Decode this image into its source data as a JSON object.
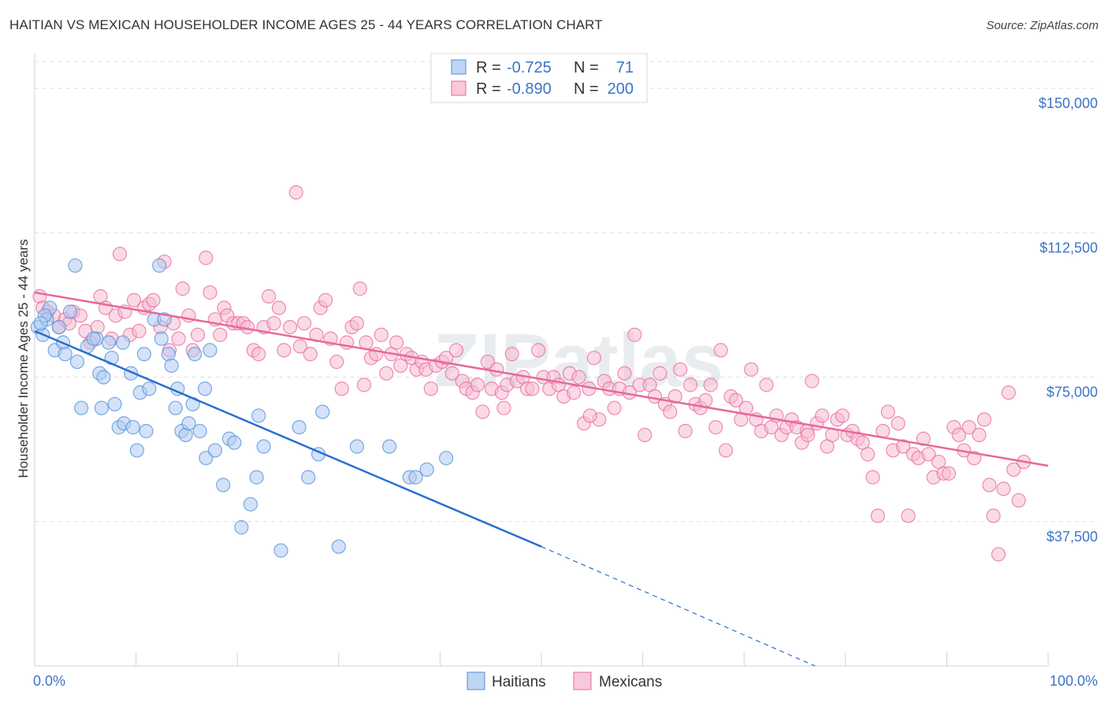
{
  "title": "HAITIAN VS MEXICAN HOUSEHOLDER INCOME AGES 25 - 44 YEARS CORRELATION CHART",
  "source": "Source: ZipAtlas.com",
  "watermark": "ZIPatlas",
  "colors": {
    "haitians": "#4f8fdc",
    "haitians_fill": "#aecbf0",
    "mexicans": "#e8689a",
    "mexicans_fill": "#f6bcd2",
    "axis_text": "#3b74c9",
    "grid": "#d9dde3"
  },
  "legend": {
    "rows": [
      {
        "series": "Haitians",
        "r_label": "R =",
        "r_value": "-0.725",
        "n_label": "N =",
        "n_value": "71"
      },
      {
        "series": "Mexicans",
        "r_label": "R =",
        "r_value": "-0.890",
        "n_label": "N =",
        "n_value": "200"
      }
    ]
  },
  "chart_data": {
    "type": "scatter",
    "title": "HAITIAN VS MEXICAN HOUSEHOLDER INCOME AGES 25 - 44 YEARS CORRELATION CHART",
    "xlabel": "",
    "ylabel": "Householder Income Ages 25 - 44 years",
    "xlim": [
      0,
      100
    ],
    "ylim": [
      0,
      157000
    ],
    "x_tick_labels": [
      "0.0%",
      "100.0%"
    ],
    "y_ticks": [
      37500,
      75000,
      112500,
      150000
    ],
    "y_tick_labels": [
      "$37,500",
      "$75,000",
      "$112,500",
      "$150,000"
    ],
    "grid": true,
    "legend_position": "top-center",
    "series": [
      {
        "name": "Haitians",
        "r": -0.725,
        "n": 71,
        "trend": {
          "x0": 0,
          "y0": 87000,
          "x1": 50,
          "y1": 31000,
          "dashed_to_x": 77,
          "dashed_to_y": 0
        },
        "points": [
          [
            0.3,
            88000
          ],
          [
            0.8,
            86000
          ],
          [
            1.5,
            93000
          ],
          [
            2.0,
            82000
          ],
          [
            2.8,
            84000
          ],
          [
            3.0,
            81000
          ],
          [
            3.5,
            92000
          ],
          [
            4.2,
            79000
          ],
          [
            4.6,
            67000
          ],
          [
            5.2,
            83000
          ],
          [
            6.1,
            85000
          ],
          [
            6.4,
            76000
          ],
          [
            6.6,
            67000
          ],
          [
            6.8,
            75000
          ],
          [
            7.6,
            80000
          ],
          [
            7.3,
            84000
          ],
          [
            7.9,
            68000
          ],
          [
            8.3,
            62000
          ],
          [
            8.7,
            84000
          ],
          [
            8.8,
            63000
          ],
          [
            9.5,
            76000
          ],
          [
            9.7,
            62000
          ],
          [
            10.1,
            56000
          ],
          [
            10.4,
            71000
          ],
          [
            10.8,
            81000
          ],
          [
            11.0,
            61000
          ],
          [
            11.3,
            72000
          ],
          [
            11.8,
            90000
          ],
          [
            12.3,
            104000
          ],
          [
            12.5,
            85000
          ],
          [
            12.8,
            90000
          ],
          [
            13.2,
            81000
          ],
          [
            13.5,
            78000
          ],
          [
            13.9,
            67000
          ],
          [
            14.1,
            72000
          ],
          [
            14.5,
            61000
          ],
          [
            14.9,
            60000
          ],
          [
            15.2,
            63000
          ],
          [
            15.6,
            68000
          ],
          [
            15.8,
            81000
          ],
          [
            16.3,
            61000
          ],
          [
            16.8,
            72000
          ],
          [
            16.9,
            54000
          ],
          [
            17.3,
            82000
          ],
          [
            17.8,
            56000
          ],
          [
            18.6,
            47000
          ],
          [
            19.2,
            59000
          ],
          [
            19.7,
            58000
          ],
          [
            20.4,
            36000
          ],
          [
            21.3,
            42000
          ],
          [
            21.9,
            49000
          ],
          [
            22.1,
            65000
          ],
          [
            22.6,
            57000
          ],
          [
            24.3,
            30000
          ],
          [
            26.1,
            62000
          ],
          [
            27.0,
            49000
          ],
          [
            28.0,
            55000
          ],
          [
            28.4,
            66000
          ],
          [
            30.0,
            31000
          ],
          [
            31.8,
            57000
          ],
          [
            35.0,
            57000
          ],
          [
            37.0,
            49000
          ],
          [
            37.6,
            49000
          ],
          [
            38.7,
            51000
          ],
          [
            40.6,
            54000
          ],
          [
            1.2,
            90000
          ],
          [
            4.0,
            104000
          ],
          [
            5.8,
            85000
          ],
          [
            2.4,
            88000
          ],
          [
            1.0,
            91000
          ],
          [
            0.6,
            89000
          ]
        ]
      },
      {
        "name": "Mexicans",
        "r": -0.89,
        "n": 200,
        "trend": {
          "x0": 0,
          "y0": 97000,
          "x1": 100,
          "y1": 52000
        },
        "points": [
          [
            0.5,
            96000
          ],
          [
            0.8,
            93000
          ],
          [
            1.3,
            92000
          ],
          [
            1.9,
            91000
          ],
          [
            2.4,
            88000
          ],
          [
            3.0,
            90000
          ],
          [
            3.4,
            89000
          ],
          [
            3.8,
            92000
          ],
          [
            4.5,
            91000
          ],
          [
            5.0,
            87000
          ],
          [
            5.5,
            84000
          ],
          [
            6.2,
            88000
          ],
          [
            6.5,
            96000
          ],
          [
            7.0,
            93000
          ],
          [
            7.6,
            85000
          ],
          [
            8.0,
            91000
          ],
          [
            8.4,
            107000
          ],
          [
            8.9,
            92000
          ],
          [
            9.4,
            86000
          ],
          [
            9.8,
            95000
          ],
          [
            10.3,
            87000
          ],
          [
            10.8,
            93000
          ],
          [
            11.3,
            94000
          ],
          [
            11.7,
            95000
          ],
          [
            12.4,
            88000
          ],
          [
            12.8,
            105000
          ],
          [
            13.3,
            82000
          ],
          [
            13.7,
            89000
          ],
          [
            14.2,
            85000
          ],
          [
            14.6,
            98000
          ],
          [
            15.2,
            91000
          ],
          [
            15.6,
            82000
          ],
          [
            16.1,
            86000
          ],
          [
            16.9,
            106000
          ],
          [
            17.3,
            97000
          ],
          [
            17.8,
            90000
          ],
          [
            18.3,
            86000
          ],
          [
            18.7,
            93000
          ],
          [
            19.0,
            91000
          ],
          [
            19.6,
            89000
          ],
          [
            20.1,
            89000
          ],
          [
            20.6,
            89000
          ],
          [
            21.0,
            88000
          ],
          [
            21.6,
            82000
          ],
          [
            22.1,
            81000
          ],
          [
            22.6,
            88000
          ],
          [
            23.1,
            96000
          ],
          [
            23.6,
            89000
          ],
          [
            24.1,
            93000
          ],
          [
            24.6,
            82000
          ],
          [
            25.2,
            88000
          ],
          [
            25.8,
            123000
          ],
          [
            26.2,
            83000
          ],
          [
            26.6,
            89000
          ],
          [
            27.2,
            81000
          ],
          [
            27.8,
            86000
          ],
          [
            28.2,
            93000
          ],
          [
            28.7,
            95000
          ],
          [
            29.2,
            85000
          ],
          [
            29.8,
            79000
          ],
          [
            30.3,
            72000
          ],
          [
            30.8,
            84000
          ],
          [
            31.3,
            88000
          ],
          [
            31.8,
            89000
          ],
          [
            32.1,
            98000
          ],
          [
            32.7,
            84000
          ],
          [
            33.2,
            80000
          ],
          [
            33.7,
            81000
          ],
          [
            34.2,
            86000
          ],
          [
            34.7,
            76000
          ],
          [
            35.2,
            81000
          ],
          [
            35.7,
            84000
          ],
          [
            36.1,
            78000
          ],
          [
            36.7,
            81000
          ],
          [
            37.2,
            80000
          ],
          [
            37.7,
            77000
          ],
          [
            38.2,
            79000
          ],
          [
            38.6,
            77000
          ],
          [
            39.1,
            72000
          ],
          [
            39.6,
            78000
          ],
          [
            40.2,
            79000
          ],
          [
            40.6,
            80000
          ],
          [
            41.2,
            76000
          ],
          [
            41.6,
            82000
          ],
          [
            42.2,
            74000
          ],
          [
            42.6,
            72000
          ],
          [
            43.2,
            71000
          ],
          [
            43.7,
            73000
          ],
          [
            44.2,
            66000
          ],
          [
            44.7,
            79000
          ],
          [
            45.1,
            72000
          ],
          [
            45.6,
            77000
          ],
          [
            46.1,
            71000
          ],
          [
            46.6,
            73000
          ],
          [
            47.1,
            81000
          ],
          [
            47.6,
            74000
          ],
          [
            48.2,
            75000
          ],
          [
            48.6,
            72000
          ],
          [
            49.1,
            72000
          ],
          [
            49.7,
            82000
          ],
          [
            50.2,
            75000
          ],
          [
            50.8,
            72000
          ],
          [
            51.2,
            75000
          ],
          [
            51.7,
            73000
          ],
          [
            52.2,
            70000
          ],
          [
            52.8,
            76000
          ],
          [
            53.2,
            71000
          ],
          [
            53.7,
            75000
          ],
          [
            54.2,
            63000
          ],
          [
            54.7,
            72000
          ],
          [
            55.2,
            80000
          ],
          [
            55.7,
            64000
          ],
          [
            56.2,
            74000
          ],
          [
            56.7,
            72000
          ],
          [
            57.2,
            67000
          ],
          [
            57.7,
            72000
          ],
          [
            58.2,
            76000
          ],
          [
            58.7,
            71000
          ],
          [
            59.2,
            86000
          ],
          [
            59.7,
            73000
          ],
          [
            60.2,
            60000
          ],
          [
            60.7,
            73000
          ],
          [
            61.2,
            70000
          ],
          [
            61.7,
            76000
          ],
          [
            62.2,
            68000
          ],
          [
            62.7,
            66000
          ],
          [
            63.2,
            70000
          ],
          [
            63.7,
            77000
          ],
          [
            64.2,
            61000
          ],
          [
            64.7,
            73000
          ],
          [
            65.2,
            68000
          ],
          [
            65.7,
            67000
          ],
          [
            66.2,
            69000
          ],
          [
            66.7,
            73000
          ],
          [
            67.2,
            62000
          ],
          [
            67.7,
            82000
          ],
          [
            68.2,
            56000
          ],
          [
            68.7,
            70000
          ],
          [
            69.2,
            69000
          ],
          [
            69.7,
            64000
          ],
          [
            70.2,
            67000
          ],
          [
            70.7,
            77000
          ],
          [
            71.2,
            64000
          ],
          [
            71.7,
            61000
          ],
          [
            72.2,
            73000
          ],
          [
            72.7,
            62000
          ],
          [
            73.2,
            65000
          ],
          [
            73.7,
            60000
          ],
          [
            74.2,
            62000
          ],
          [
            74.7,
            64000
          ],
          [
            75.2,
            62000
          ],
          [
            75.7,
            58000
          ],
          [
            76.2,
            61000
          ],
          [
            76.7,
            74000
          ],
          [
            77.2,
            63000
          ],
          [
            77.7,
            65000
          ],
          [
            78.2,
            57000
          ],
          [
            78.7,
            60000
          ],
          [
            79.2,
            64000
          ],
          [
            79.7,
            65000
          ],
          [
            80.2,
            60000
          ],
          [
            80.7,
            61000
          ],
          [
            81.2,
            59000
          ],
          [
            81.7,
            58000
          ],
          [
            82.2,
            55000
          ],
          [
            82.7,
            49000
          ],
          [
            83.2,
            39000
          ],
          [
            83.7,
            61000
          ],
          [
            84.2,
            66000
          ],
          [
            84.7,
            56000
          ],
          [
            85.2,
            63000
          ],
          [
            85.7,
            57000
          ],
          [
            86.2,
            39000
          ],
          [
            86.7,
            55000
          ],
          [
            87.2,
            54000
          ],
          [
            87.7,
            59000
          ],
          [
            88.2,
            55000
          ],
          [
            88.7,
            49000
          ],
          [
            89.2,
            53000
          ],
          [
            89.7,
            50000
          ],
          [
            90.2,
            50000
          ],
          [
            90.7,
            62000
          ],
          [
            91.2,
            60000
          ],
          [
            91.7,
            56000
          ],
          [
            92.2,
            62000
          ],
          [
            92.7,
            54000
          ],
          [
            93.2,
            60000
          ],
          [
            93.7,
            64000
          ],
          [
            94.2,
            47000
          ],
          [
            94.6,
            39000
          ],
          [
            95.1,
            29000
          ],
          [
            95.6,
            46000
          ],
          [
            96.1,
            71000
          ],
          [
            96.6,
            51000
          ],
          [
            97.1,
            43000
          ],
          [
            97.6,
            53000
          ],
          [
            32.5,
            73000
          ],
          [
            46.3,
            67000
          ],
          [
            54.8,
            65000
          ],
          [
            76.3,
            60000
          ]
        ]
      }
    ]
  },
  "bottom_legend": [
    {
      "label": "Haitians"
    },
    {
      "label": "Mexicans"
    }
  ]
}
